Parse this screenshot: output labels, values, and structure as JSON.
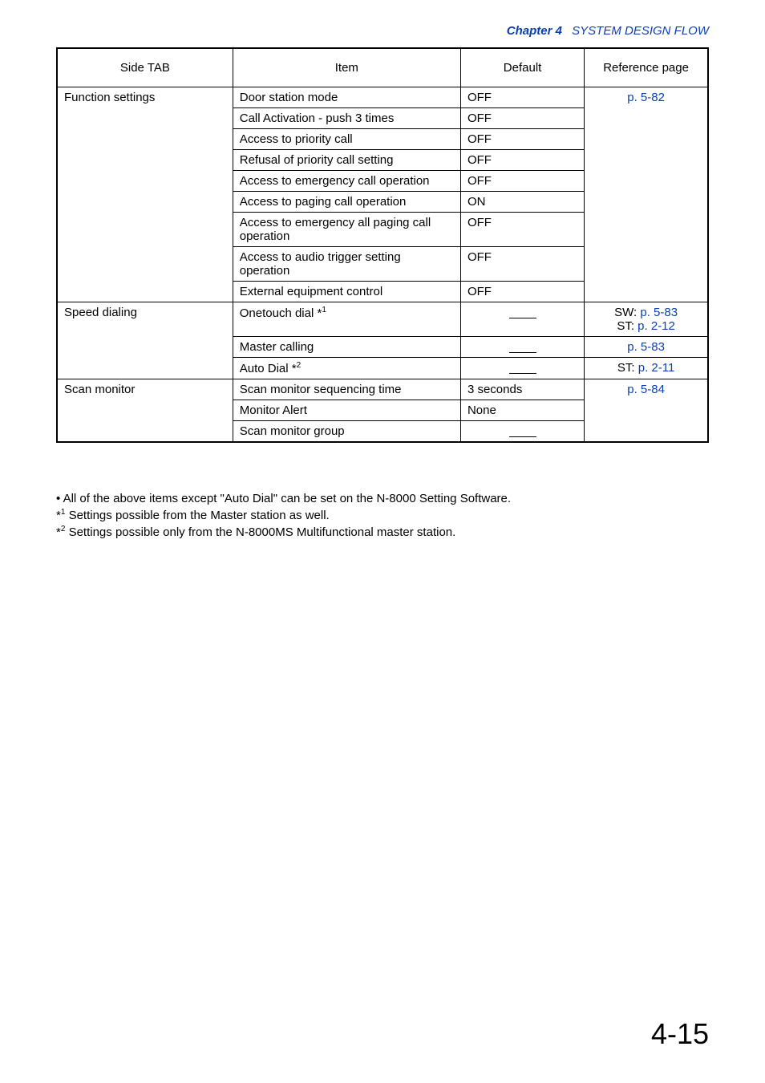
{
  "header": {
    "chapter_label": "Chapter 4",
    "title": "SYSTEM DESIGN FLOW"
  },
  "table": {
    "columns": {
      "side_tab": "Side TAB",
      "item": "Item",
      "default": "Default",
      "reference": "Reference page"
    },
    "groups": [
      {
        "side_tab": "Function settings",
        "reference_html": "p. 5-82",
        "rows": [
          {
            "item": "Door station mode",
            "default": "OFF"
          },
          {
            "item": "Call Activation - push 3 times",
            "default": "OFF"
          },
          {
            "item": "Access to priority call",
            "default": "OFF"
          },
          {
            "item": "Refusal of priority call setting",
            "default": "OFF"
          },
          {
            "item": "Access to emergency call operation",
            "default": "OFF"
          },
          {
            "item": "Access to paging call operation",
            "default": "ON"
          },
          {
            "item": "Access to emergency all paging call operation",
            "default": "OFF"
          },
          {
            "item": "Access to audio trigger setting operation",
            "default": "OFF"
          },
          {
            "item": "External equipment control",
            "default": "OFF"
          }
        ]
      },
      {
        "side_tab": "Speed dialing",
        "rows": [
          {
            "item_html": "Onetouch dial *<span class=\"sup\">1</span>",
            "default_dash": true,
            "reference_html": "<span class=\"sw\">SW:</span> <span class=\"ref-link\">p. 5-83</span><br><span class=\"st\">ST: </span> <span class=\"ref-link\">p. 2-12</span>"
          },
          {
            "item": "Master calling",
            "default_dash": true,
            "reference_html": "<span class=\"ref-link\">p. 5-83</span>"
          },
          {
            "item_html": "Auto Dial *<span class=\"sup\">2</span>",
            "default_dash": true,
            "reference_html": "<span class=\"st\">ST:</span> <span class=\"ref-link\">p. 2-11</span>"
          }
        ]
      },
      {
        "side_tab": "Scan monitor",
        "reference_html": "p. 5-84",
        "rows": [
          {
            "item": "Scan monitor sequencing time",
            "default": "3 seconds"
          },
          {
            "item": "Monitor Alert",
            "default": "None"
          },
          {
            "item": "Scan monitor group",
            "default_dash": true
          }
        ]
      }
    ]
  },
  "notes": {
    "bullet": "• All of the above items except \"Auto Dial\" can be set on the N-8000 Setting Software.",
    "note1_html": "*<span class=\"sup\">1</span> Settings possible from the Master station as well.",
    "note2_html": "*<span class=\"sup\">2</span> Settings possible only from the N-8000MS Multifunctional master station."
  },
  "page_number": "4-15",
  "colors": {
    "link_blue": "#0b3fae",
    "text_black": "#000000",
    "background": "#ffffff"
  }
}
